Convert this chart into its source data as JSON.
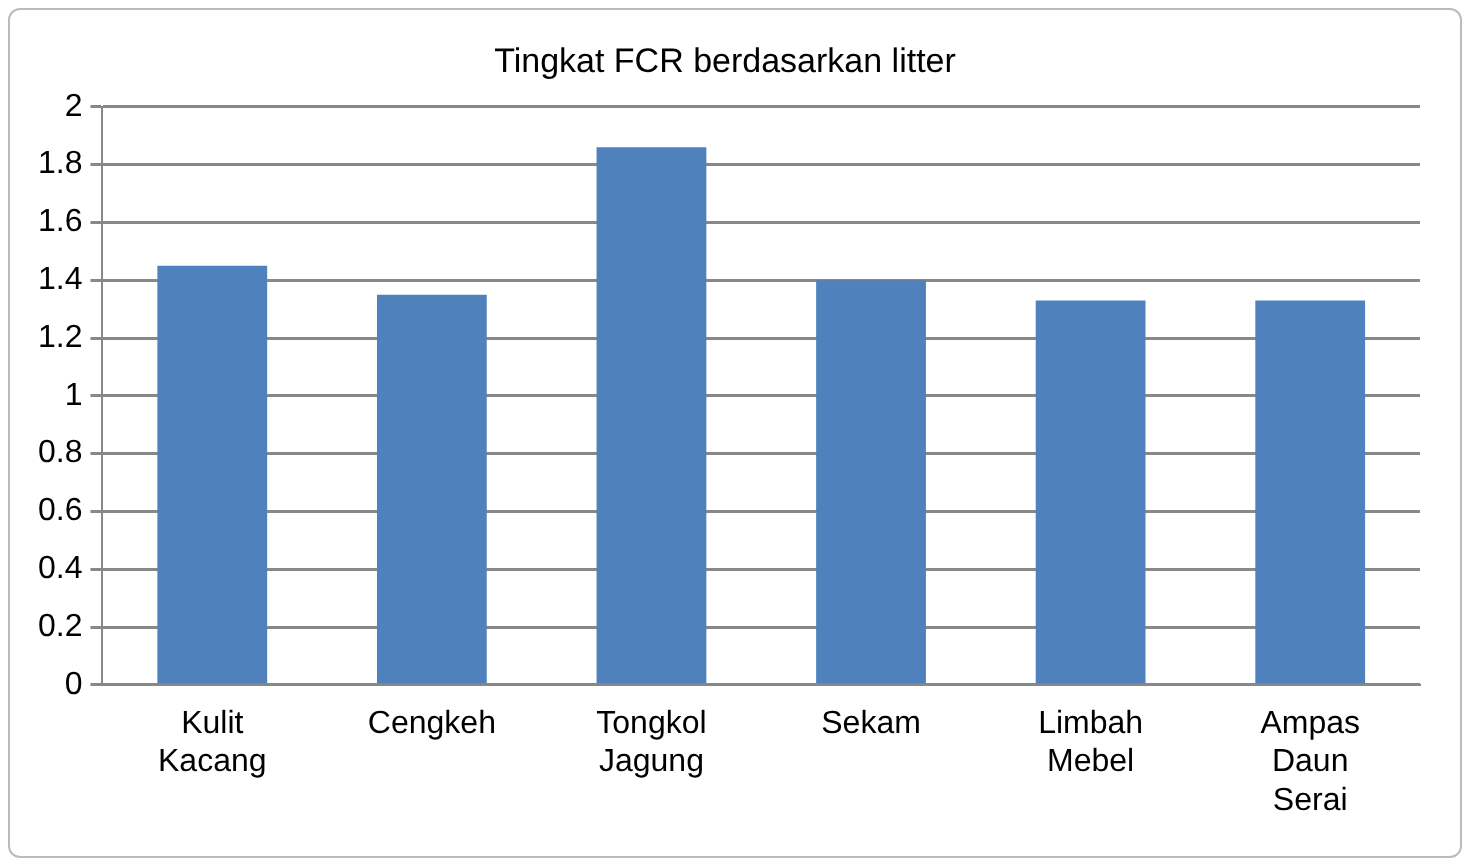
{
  "chart_data": {
    "type": "bar",
    "title": "Tingkat FCR berdasarkan litter",
    "categories": [
      "Kulit Kacang",
      "Cengkeh",
      "Tongkol Jagung",
      "Sekam",
      "Limbah Mebel",
      "Ampas Daun Serai"
    ],
    "values": [
      1.45,
      1.35,
      1.86,
      1.4,
      1.33,
      1.33
    ],
    "color": "#4f81bd",
    "ylim": [
      0,
      2
    ],
    "yticks": [
      0,
      0.2,
      0.4,
      0.6,
      0.8,
      1,
      1.2,
      1.4,
      1.6,
      1.8,
      2
    ],
    "grid": "y",
    "legend": false
  }
}
